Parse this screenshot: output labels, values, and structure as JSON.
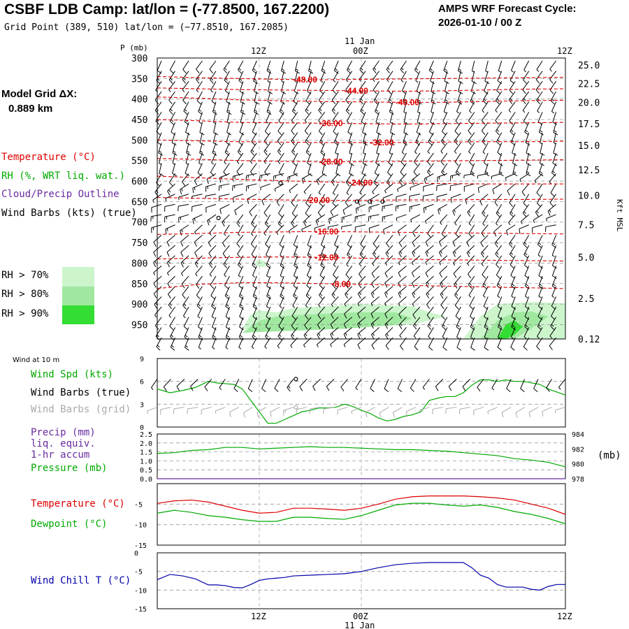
{
  "header": {
    "title": "CSBF LDB Camp:  lat/lon = (-77.8500, 167.2200)",
    "grid_point": "Grid Point (389, 510) lat/lon = (−77.8510, 167.2085)",
    "cycle_line1": "AMPS WRF Forecast Cycle:",
    "cycle_line2": "2026-01-10 / 00  Z"
  },
  "model_grid": {
    "label": "Model Grid ΔX:",
    "value": "0.889 km"
  },
  "colors": {
    "temperature": "#dd0000",
    "rh": "#00aa00",
    "cloud": "#6a2aa0",
    "wind": "#000000",
    "grid_barb": "#aaaaaa",
    "windchill": "#0000aa",
    "rh70": "#ccf5cc",
    "rh80": "#a0e8a0",
    "rh90": "#33dd33"
  },
  "legend": {
    "temperature": "Temperature (°C)",
    "rh": "RH (%, WRT liq. wat.)",
    "cloud": "Cloud/Precip Outline",
    "wind": "Wind Barbs (kts) (true)",
    "rh70": "RH > 70%",
    "rh80": "RH > 80%",
    "rh90": "RH > 90%"
  },
  "time_axis": {
    "top_ticks": [
      "12Z",
      "00Z",
      "12Z"
    ],
    "date_label": "11 Jan",
    "bottom_ticks": [
      "12Z",
      "00Z",
      "12Z"
    ],
    "bottom_date": "11 Jan"
  },
  "chart_data": [
    {
      "type": "heatmap",
      "title": "Vertical cross-section (pressure vs time)",
      "ylabel": "P (mb)",
      "ylabel_right": "Kft MSL",
      "pressure_ticks": [
        "300",
        "350",
        "400",
        "450",
        "500",
        "550",
        "600",
        "650",
        "700",
        "750",
        "800",
        "850",
        "900",
        "950"
      ],
      "pressure_range": [
        300,
        985
      ],
      "height_ticks": [
        {
          "p": 317,
          "label": "25.0"
        },
        {
          "p": 362,
          "label": "22.5"
        },
        {
          "p": 408,
          "label": "20.0"
        },
        {
          "p": 460,
          "label": "17.5"
        },
        {
          "p": 513,
          "label": "15.0"
        },
        {
          "p": 573,
          "label": "12.5"
        },
        {
          "p": 635,
          "label": "10.0"
        },
        {
          "p": 706,
          "label": "7.5"
        },
        {
          "p": 786,
          "label": "5.0"
        },
        {
          "p": 886,
          "label": "2.5"
        },
        {
          "p": 985,
          "label": "0.12"
        }
      ],
      "time_range_hours": [
        0,
        48
      ],
      "isotherms": [
        {
          "label": "-48.00",
          "t": 17.5,
          "p": [
            345,
            348,
            350,
            352,
            353,
            352,
            351,
            350,
            349,
            348,
            347
          ]
        },
        {
          "label": "-44.00",
          "t": 23.5,
          "p": [
            373,
            375,
            377,
            378,
            379,
            380,
            381,
            380,
            378,
            376,
            375
          ]
        },
        {
          "label": "-40.00",
          "t": 29.5,
          "p": [
            395,
            398,
            402,
            404,
            406,
            407,
            408,
            408,
            406,
            404,
            403
          ]
        },
        {
          "label": "-36.00",
          "t": 20.5,
          "p": [
            450,
            453,
            457,
            458,
            459,
            460,
            461,
            460,
            459,
            458,
            457
          ]
        },
        {
          "label": "-32.00",
          "t": 26.5,
          "p": [
            500,
            502,
            504,
            505,
            506,
            506,
            506,
            505,
            504,
            504,
            503
          ]
        },
        {
          "label": "-28.00",
          "t": 20.5,
          "p": [
            545,
            547,
            550,
            552,
            553,
            553,
            552,
            551,
            550,
            549,
            548
          ]
        },
        {
          "label": "-24.00",
          "t": 24.0,
          "p": [
            588,
            592,
            596,
            599,
            602,
            604,
            605,
            606,
            607,
            607,
            607
          ]
        },
        {
          "label": "-20.00",
          "t": 19.0,
          "p": [
            640,
            642,
            644,
            646,
            647,
            647,
            646,
            646,
            645,
            645,
            644
          ]
        },
        {
          "label": "-16.00",
          "t": 20.0,
          "p": [
            730,
            728,
            725,
            724,
            723,
            724,
            725,
            726,
            727,
            728,
            729
          ]
        },
        {
          "label": "-12.00",
          "t": 20.0,
          "p": [
            790,
            788,
            786,
            785,
            786,
            788,
            790,
            792,
            793,
            794,
            795
          ]
        },
        {
          "label": "-8.00",
          "t": 22.0,
          "p": [
            862,
            852,
            848,
            848,
            850,
            852,
            854,
            856,
            858,
            860,
            862
          ]
        }
      ],
      "rh_regions": [
        {
          "level": 70,
          "t": [
            10,
            11,
            12,
            14,
            16,
            20,
            24,
            30,
            32,
            34,
            30,
            22,
            16,
            12,
            10
          ],
          "p": [
            960,
            925,
            915,
            920,
            910,
            905,
            900,
            905,
            920,
            930,
            950,
            960,
            965,
            965,
            960
          ]
        },
        {
          "level": 70,
          "t": [
            36,
            38,
            40,
            44,
            48,
            48,
            44,
            40,
            38,
            36
          ],
          "p": [
            985,
            930,
            900,
            895,
            898,
            985,
            985,
            985,
            985,
            985
          ]
        },
        {
          "level": 70,
          "t": [
            11.5,
            12,
            13,
            12.5,
            11.5
          ],
          "p": [
            800,
            790,
            800,
            810,
            805
          ]
        },
        {
          "level": 80,
          "t": [
            10,
            12,
            14,
            18,
            24,
            28,
            30,
            28,
            22,
            16,
            12,
            10
          ],
          "p": [
            970,
            940,
            930,
            925,
            920,
            920,
            935,
            950,
            960,
            965,
            968,
            970
          ]
        },
        {
          "level": 80,
          "t": [
            38,
            40,
            42,
            44,
            46,
            44,
            42,
            40,
            38
          ],
          "p": [
            985,
            940,
            920,
            918,
            930,
            960,
            985,
            985,
            985
          ]
        },
        {
          "level": 90,
          "t": [
            40,
            41,
            42,
            43,
            42,
            41,
            40
          ],
          "p": [
            985,
            950,
            940,
            955,
            975,
            985,
            985
          ]
        }
      ],
      "surface_wind_barbs_kts": "rows at every 25 mb, columns every ~1.6 h, speeds 5-15 kt"
    },
    {
      "type": "line",
      "title": "Wind at 10 m",
      "series": [
        {
          "name": "Wind Spd (kts)",
          "color": "#00aa00",
          "x": [
            0,
            1.5,
            3,
            4.5,
            6,
            7,
            8,
            9,
            10,
            11,
            12,
            13,
            14,
            15,
            16,
            17,
            18,
            19,
            20,
            21,
            22,
            23,
            24,
            25,
            26,
            27,
            28,
            29,
            30,
            31,
            32,
            33,
            34,
            35,
            36,
            37,
            38,
            39,
            40,
            41,
            42,
            43,
            44,
            45,
            46,
            47,
            48
          ],
          "y": [
            5,
            4.5,
            4.8,
            5.2,
            6,
            5.8,
            5.7,
            5.6,
            5,
            3.5,
            2,
            0.5,
            0.5,
            1,
            1.5,
            2,
            2.2,
            2.5,
            2.5,
            2.6,
            3,
            2.7,
            2.2,
            1.8,
            1.2,
            0.8,
            1,
            1.4,
            1.6,
            2,
            3.5,
            3.8,
            4,
            4,
            4.5,
            5.5,
            6.2,
            6.2,
            6,
            6.2,
            6,
            6,
            5.8,
            5.6,
            5,
            4.6,
            4.2
          ]
        }
      ],
      "ylim": [
        0,
        9
      ],
      "y_ticks": [
        "0",
        "3",
        "6",
        "9"
      ],
      "labels": {
        "speed": "Wind Spd (kts)",
        "barbs_true": "Wind Barbs (true)",
        "barbs_grid": "Wind Barbs (grid)"
      }
    },
    {
      "type": "line",
      "title": "Precip / Pressure",
      "series": [
        {
          "name": "Precip (mm) 1-hr accum",
          "color": "#6a2aa0",
          "x": [
            0,
            48
          ],
          "y": [
            0,
            0
          ]
        },
        {
          "name": "Pressure (mb)",
          "color": "#00aa00",
          "x": [
            0,
            2,
            4,
            6,
            8,
            10,
            12,
            14,
            16,
            18,
            20,
            22,
            24,
            26,
            28,
            30,
            32,
            34,
            36,
            38,
            40,
            42,
            44,
            46,
            48
          ],
          "y": [
            981.4,
            981.5,
            981.8,
            981.9,
            982.2,
            982.2,
            982.0,
            982.1,
            982.2,
            982.3,
            982.2,
            982.2,
            982.1,
            982.0,
            981.9,
            981.9,
            981.8,
            981.7,
            981.5,
            981.3,
            981.1,
            980.7,
            980.5,
            980.2,
            979.6
          ]
        }
      ],
      "ylim_left": [
        0,
        2.5
      ],
      "y_ticks_left": [
        "0.0",
        "0.5",
        "1.0",
        "1.5",
        "2.0",
        "2.5"
      ],
      "ylim_right": [
        978,
        984
      ],
      "y_ticks_right": [
        "978",
        "980",
        "982",
        "984"
      ],
      "labels": {
        "precip": "Precip (mm)",
        "liq": "liq. equiv.",
        "accum": "1-hr accum",
        "pressure": "Pressure (mb)",
        "unit": "(mb)"
      }
    },
    {
      "type": "line",
      "title": "Temperature / Dewpoint",
      "series": [
        {
          "name": "Temperature (°C)",
          "color": "#dd0000",
          "x": [
            0,
            2,
            4,
            6,
            8,
            10,
            12,
            14,
            16,
            18,
            20,
            22,
            24,
            26,
            28,
            30,
            32,
            34,
            36,
            38,
            40,
            42,
            44,
            46,
            48
          ],
          "y": [
            -4.8,
            -4.2,
            -4,
            -4.5,
            -5.5,
            -6.5,
            -7.2,
            -7,
            -6,
            -6,
            -6.2,
            -6.5,
            -6,
            -5,
            -3.8,
            -3.2,
            -3,
            -3,
            -3,
            -3.2,
            -3.5,
            -4,
            -5,
            -6,
            -7.5
          ]
        },
        {
          "name": "Dewpoint (°C)",
          "color": "#00aa00",
          "x": [
            0,
            2,
            4,
            6,
            8,
            10,
            12,
            14,
            16,
            18,
            20,
            22,
            24,
            26,
            28,
            30,
            32,
            34,
            36,
            38,
            40,
            42,
            44,
            46,
            48
          ],
          "y": [
            -7.2,
            -6.5,
            -7,
            -7.8,
            -8.2,
            -8.8,
            -9.2,
            -9.2,
            -8.2,
            -8.2,
            -8.5,
            -8.7,
            -7.8,
            -6.5,
            -5.2,
            -4.8,
            -4.8,
            -5.2,
            -5.5,
            -5.2,
            -5.8,
            -6.8,
            -7.5,
            -8.5,
            -9.8
          ]
        }
      ],
      "ylim": [
        -15,
        0
      ],
      "y_ticks": [
        "-15",
        "-10",
        "-5"
      ]
    },
    {
      "type": "line",
      "title": "Wind Chill",
      "series": [
        {
          "name": "Wind Chill T (°C)",
          "color": "#0000aa",
          "x": [
            0,
            1.5,
            3,
            4.5,
            6,
            7,
            8,
            9,
            10,
            11,
            12,
            13,
            14,
            15,
            16,
            18,
            20,
            22,
            24,
            26,
            28,
            30,
            32,
            34,
            36,
            37,
            38,
            39,
            40,
            41,
            42,
            43,
            44,
            45,
            46,
            47,
            48
          ],
          "y": [
            -7.2,
            -5.8,
            -6.2,
            -7,
            -8.6,
            -8.6,
            -8.8,
            -9.3,
            -9.4,
            -8.5,
            -7.4,
            -7,
            -6.8,
            -6.6,
            -6.2,
            -6,
            -5.8,
            -5.6,
            -5,
            -4,
            -3.2,
            -2.8,
            -2.6,
            -2.6,
            -2.6,
            -4,
            -6,
            -6.8,
            -8.5,
            -9.2,
            -9.2,
            -9.2,
            -9.8,
            -10,
            -9,
            -8.5,
            -8.5
          ]
        }
      ],
      "ylim": [
        -15,
        0
      ],
      "y_ticks": [
        "-15",
        "-10",
        "-5",
        "0"
      ],
      "label": "Wind Chill T (°C)"
    }
  ]
}
